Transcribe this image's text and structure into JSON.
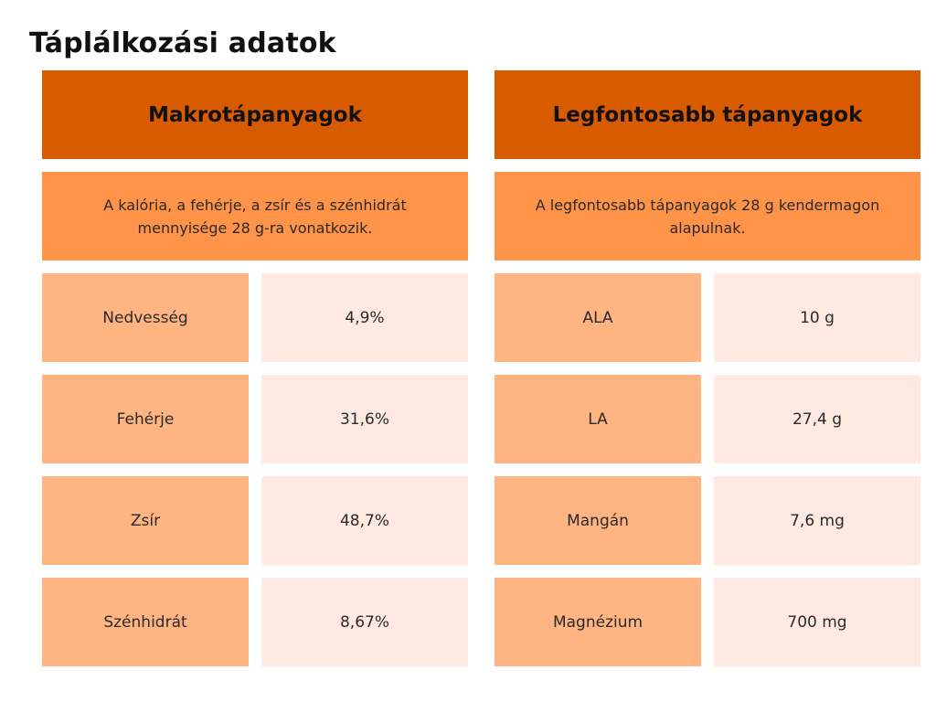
{
  "page": {
    "title": "Táplálkozási adatok"
  },
  "colors": {
    "header_bg": "#d95b00",
    "note_bg": "#ff9448",
    "label_bg": "#ffb482",
    "value_bg": "#ffe9e0"
  },
  "left": {
    "header": "Makrotápanyagok",
    "note": "A kalória, a fehérje, a zsír és a szénhidrát mennyisége 28 g-ra vonatkozik.",
    "rows": [
      {
        "label": "Nedvesség",
        "value": "4,9%"
      },
      {
        "label": "Fehérje",
        "value": "31,6%"
      },
      {
        "label": "Zsír",
        "value": "48,7%"
      },
      {
        "label": "Szénhidrát",
        "value": "8,67%"
      }
    ]
  },
  "right": {
    "header": "Legfontosabb tápanyagok",
    "note": "A legfontosabb tápanyagok 28 g kendermagon alapulnak.",
    "rows": [
      {
        "label": "ALA",
        "value": "10 g"
      },
      {
        "label": "LA",
        "value": "27,4 g"
      },
      {
        "label": "Mangán",
        "value": "7,6 mg"
      },
      {
        "label": "Magnézium",
        "value": "700 mg"
      }
    ]
  }
}
